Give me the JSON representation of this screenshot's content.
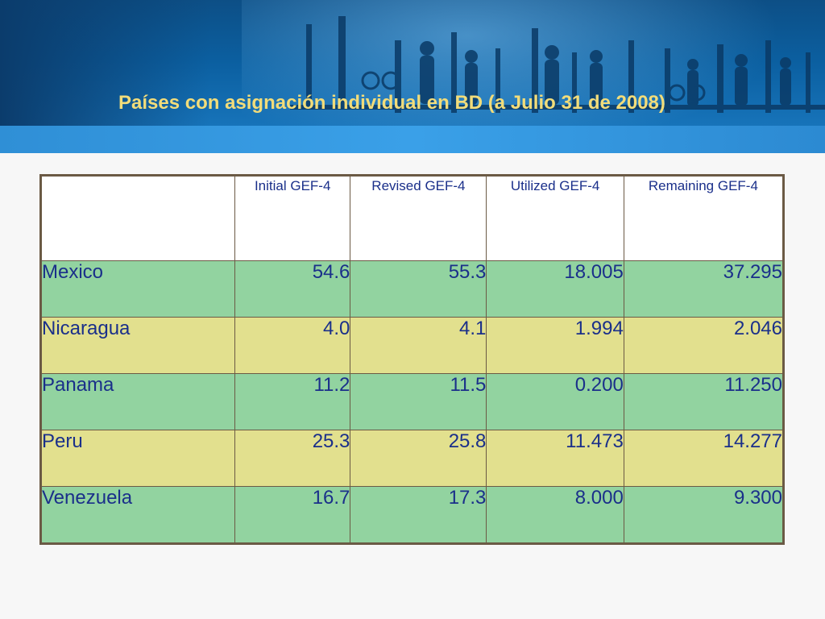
{
  "slide": {
    "title": "Países con asignación individual en BD (a Julio 31 de 2008)"
  },
  "colors": {
    "title": "#f2dc7a",
    "row_green": "#92d3a0",
    "row_yellow": "#e2e08e",
    "text": "#1a2f8a",
    "border": "#6b5a45"
  },
  "table": {
    "headers": [
      "",
      "Initial GEF-4",
      "Revised GEF-4",
      "Utilized GEF-4",
      "Remaining GEF-4"
    ],
    "rows": [
      {
        "country": "Mexico",
        "initial": "54.6",
        "revised": "55.3",
        "utilized": "18.005",
        "remaining": "37.295"
      },
      {
        "country": "Nicaragua",
        "initial": "4.0",
        "revised": "4.1",
        "utilized": "1.994",
        "remaining": "2.046"
      },
      {
        "country": "Panama",
        "initial": "11.2",
        "revised": "11.5",
        "utilized": "0.200",
        "remaining": "11.250"
      },
      {
        "country": "Peru",
        "initial": "25.3",
        "revised": "25.8",
        "utilized": "11.473",
        "remaining": "14.277"
      },
      {
        "country": "Venezuela",
        "initial": "16.7",
        "revised": "17.3",
        "utilized": "8.000",
        "remaining": "9.300"
      }
    ]
  }
}
